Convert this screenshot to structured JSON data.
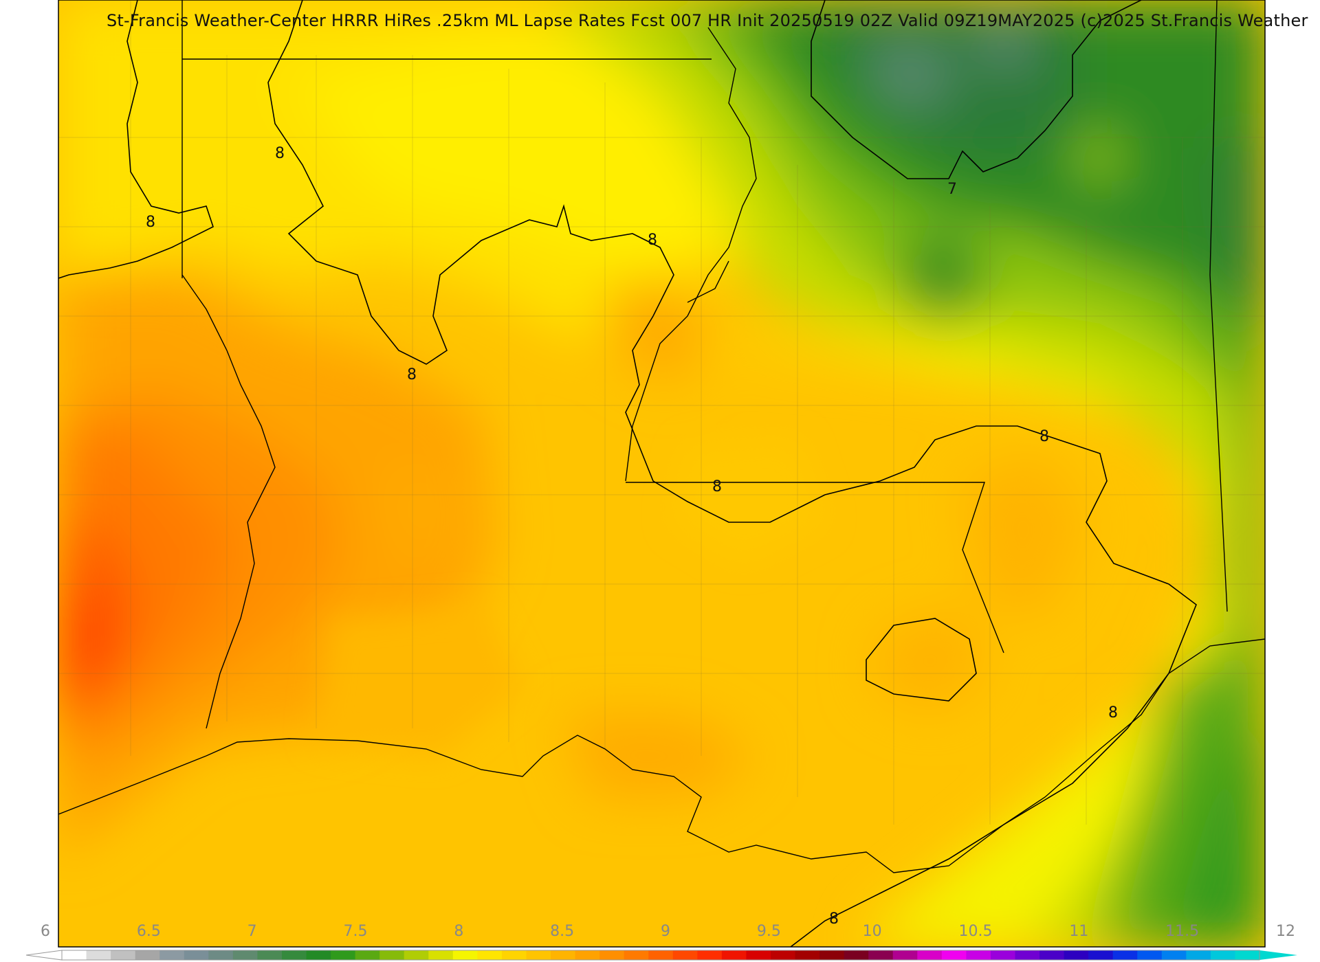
{
  "header": {
    "title": "St-Francis Weather-Center HRRR HiRes .25km ML Lapse Rates  Fcst 007 HR Init 20250519 02Z  Valid 09Z19MAY2025   (c)2025 St.Francis Weather"
  },
  "map": {
    "contour_labels": [
      {
        "id": "c1",
        "text": "8"
      },
      {
        "id": "c2",
        "text": "8"
      },
      {
        "id": "c3",
        "text": "8"
      },
      {
        "id": "c4",
        "text": "8"
      },
      {
        "id": "c5",
        "text": "8"
      },
      {
        "id": "c6",
        "text": "8"
      },
      {
        "id": "c7",
        "text": "7"
      },
      {
        "id": "c8",
        "text": "8"
      },
      {
        "id": "c9",
        "text": "8"
      }
    ]
  },
  "colorbar": {
    "min": 6,
    "max": 12,
    "tick_labels": [
      "6",
      "6.5",
      "7",
      "7.5",
      "8",
      "8.5",
      "9",
      "9.5",
      "10",
      "10.5",
      "11",
      "11.5",
      "12"
    ],
    "colors": [
      "#ffffff",
      "#dcdcdc",
      "#c0c0c0",
      "#a6a6a6",
      "#8c9aa2",
      "#7a8f98",
      "#6d8b85",
      "#5f8a6f",
      "#4b8a55",
      "#358a3d",
      "#238a26",
      "#2f9a1c",
      "#5aa912",
      "#86bb0a",
      "#b0cd05",
      "#d8e000",
      "#f5f500",
      "#ffe500",
      "#ffd400",
      "#ffc400",
      "#ffb400",
      "#ffa200",
      "#ff8f00",
      "#ff7a00",
      "#ff6200",
      "#ff4800",
      "#ff2e00",
      "#f01400",
      "#d80000",
      "#bd0000",
      "#a30000",
      "#8c0008",
      "#7a0020",
      "#8a0050",
      "#b00090",
      "#d800c8",
      "#f000f0",
      "#c800e6",
      "#9a00dc",
      "#7000d2",
      "#4a00c8",
      "#2c00c0",
      "#1a10d0",
      "#0a30e6",
      "#0058f0",
      "#0080f0",
      "#00a8e6",
      "#00c8dc",
      "#00d8d0"
    ]
  }
}
